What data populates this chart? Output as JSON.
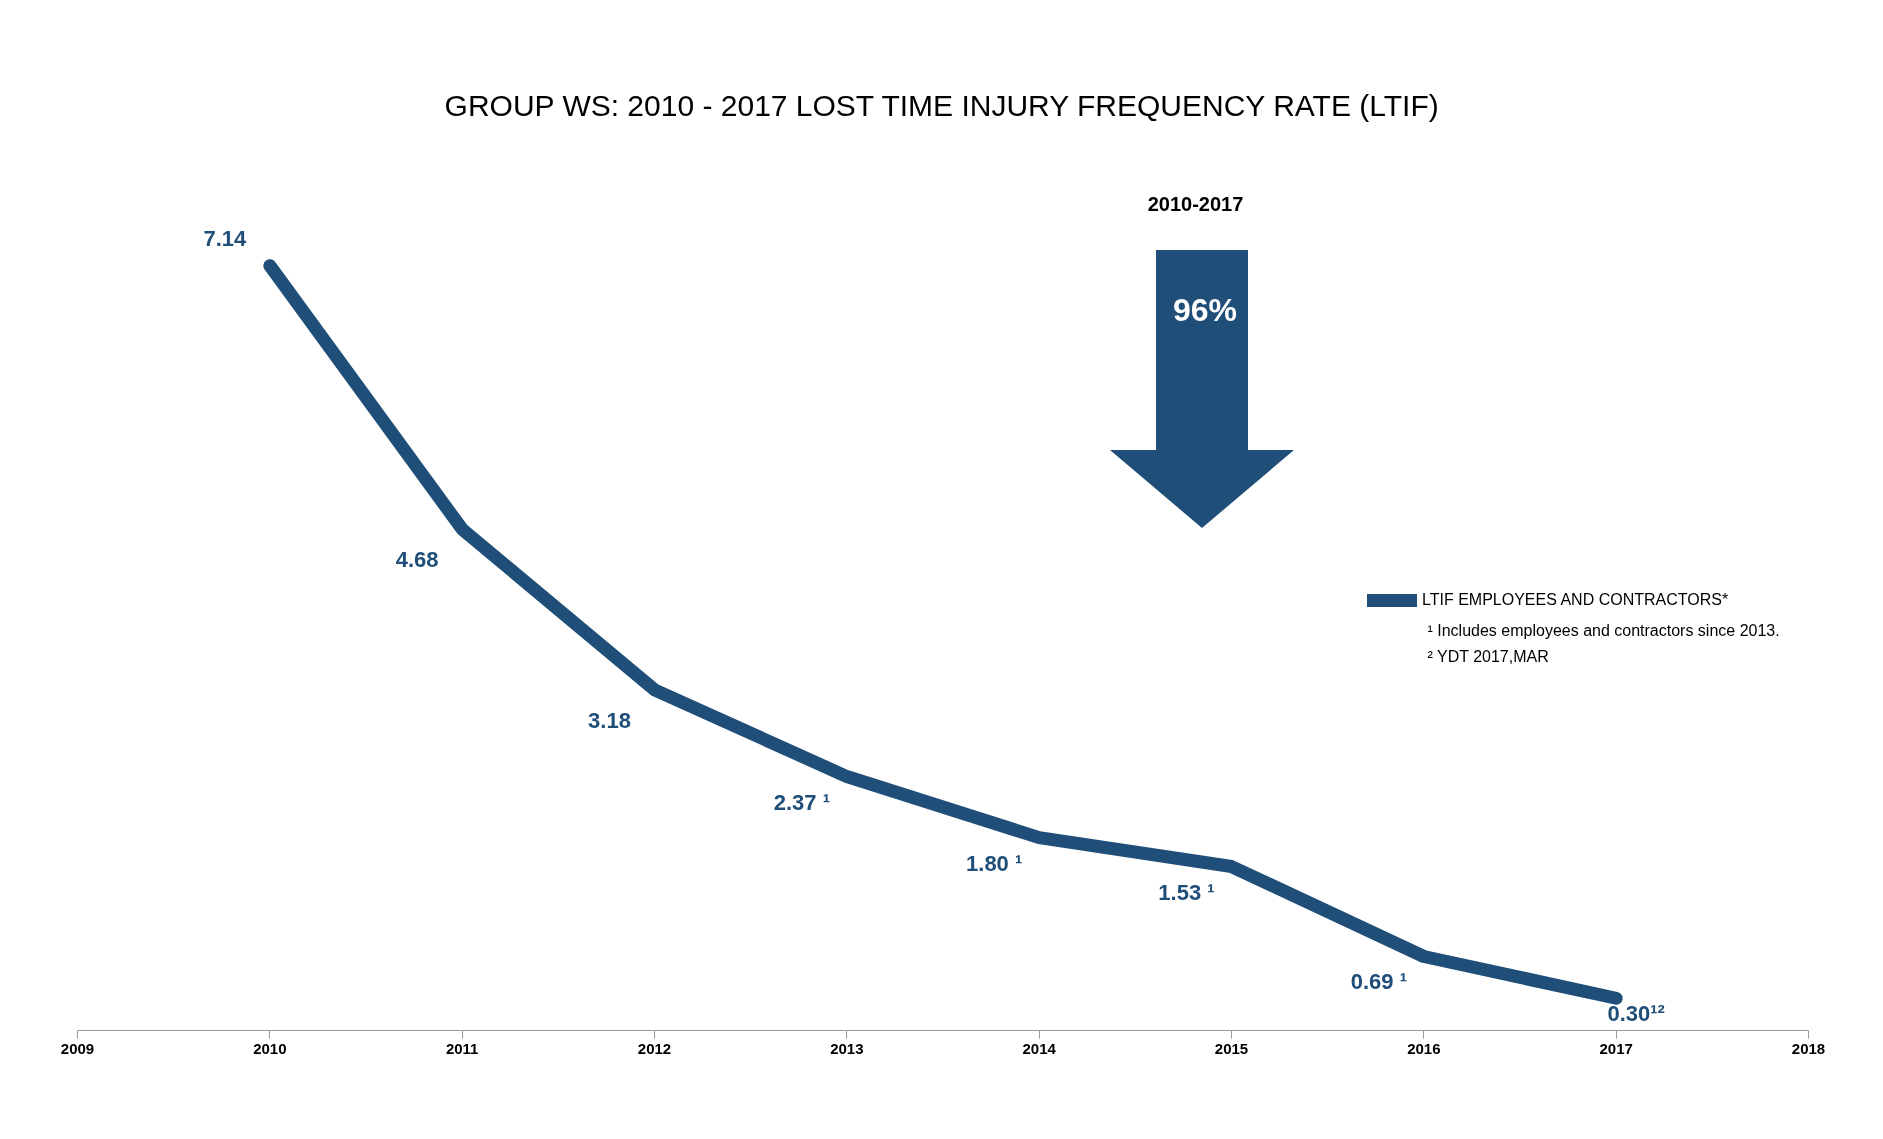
{
  "chart_data": {
    "type": "line",
    "title": "GROUP WS: 2010 - 2017 LOST TIME INJURY FREQUENCY RATE (LTIF)",
    "x": [
      2010,
      2011,
      2012,
      2013,
      2014,
      2015,
      2016,
      2017
    ],
    "series": [
      {
        "name": "LTIF EMPLOYEES AND CONTRACTORS*",
        "color": "#1f4e79",
        "values": [
          7.14,
          4.68,
          3.18,
          2.37,
          1.8,
          1.53,
          0.69,
          0.3
        ],
        "value_labels": [
          "7.14",
          "4.68",
          "3.18",
          "2.37 ¹",
          "1.80 ¹",
          "1.53 ¹",
          "0.69 ¹",
          "0.30¹²"
        ]
      }
    ],
    "xlim": [
      2009,
      2018
    ],
    "xticks": [
      2009,
      2010,
      2011,
      2012,
      2013,
      2014,
      2015,
      2016,
      2017,
      2018
    ],
    "tick_labels": "x",
    "grid": false,
    "legend": "right",
    "marker": "none",
    "line_style": "solid",
    "annotations": [
      "2010-2017",
      "96%",
      "¹ Includes employees and contractors since 2013.",
      "² YDT 2017,MAR"
    ]
  }
}
